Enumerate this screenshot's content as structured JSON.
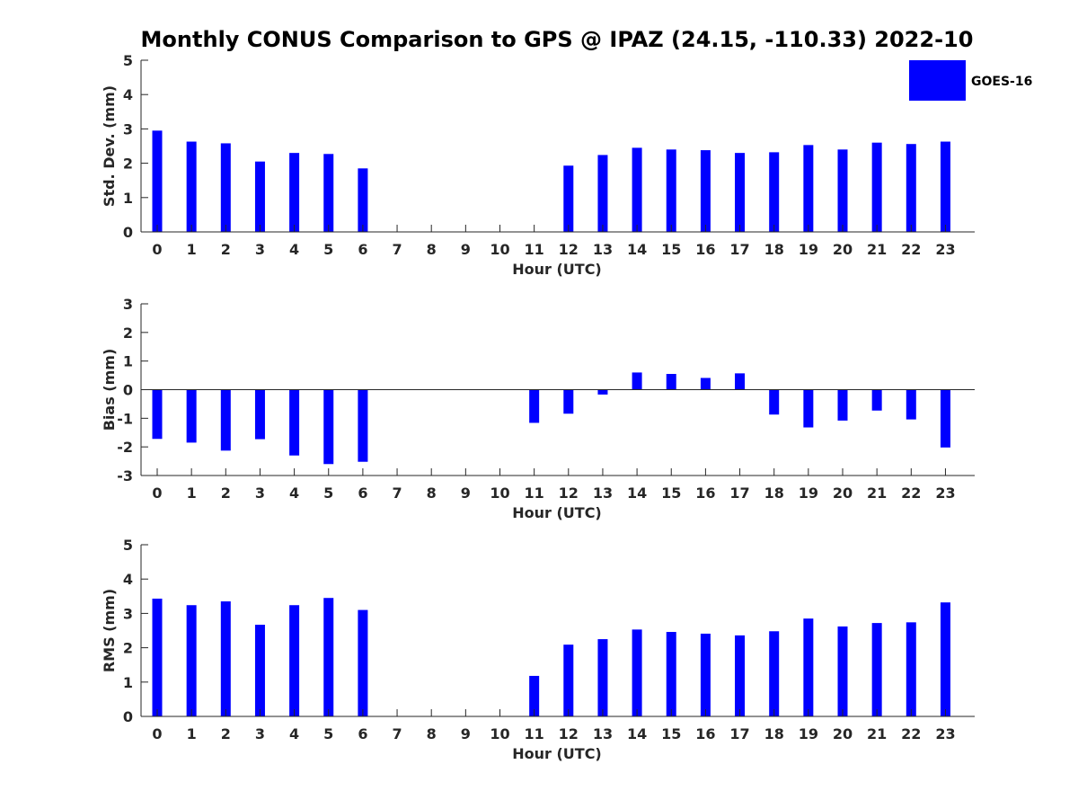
{
  "title": "Monthly CONUS Comparison to GPS @ IPAZ (24.15, -110.33) 2022-10",
  "colors": {
    "bar": "#0000ff",
    "axis": "#262626"
  },
  "chart_data": [
    {
      "type": "bar",
      "title": "Monthly CONUS Comparison to GPS @ IPAZ (24.15, -110.33) 2022-10",
      "xlabel": "Hour (UTC)",
      "ylabel": "Std. Dev. (mm)",
      "ylim": [
        0,
        5
      ],
      "yticks": [
        0,
        1,
        2,
        3,
        4,
        5
      ],
      "legend": {
        "label": "GOES-16",
        "placement": "top-right"
      },
      "categories": [
        "0",
        "1",
        "2",
        "3",
        "4",
        "5",
        "6",
        "7",
        "8",
        "9",
        "10",
        "11",
        "12",
        "13",
        "14",
        "15",
        "16",
        "17",
        "18",
        "19",
        "20",
        "21",
        "22",
        "23"
      ],
      "series": [
        {
          "name": "GOES-16",
          "values": [
            2.95,
            2.63,
            2.58,
            2.05,
            2.3,
            2.27,
            1.85,
            null,
            null,
            null,
            null,
            null,
            1.93,
            2.24,
            2.45,
            2.4,
            2.38,
            2.3,
            2.32,
            2.53,
            2.4,
            2.6,
            2.56,
            2.63
          ]
        }
      ]
    },
    {
      "type": "bar",
      "xlabel": "Hour (UTC)",
      "ylabel": "Bias (mm)",
      "ylim": [
        -3,
        3
      ],
      "yticks": [
        -3,
        -2,
        -1,
        0,
        1,
        2,
        3
      ],
      "categories": [
        "0",
        "1",
        "2",
        "3",
        "4",
        "5",
        "6",
        "7",
        "8",
        "9",
        "10",
        "11",
        "12",
        "13",
        "14",
        "15",
        "16",
        "17",
        "18",
        "19",
        "20",
        "21",
        "22",
        "23"
      ],
      "series": [
        {
          "name": "GOES-16",
          "values": [
            -1.72,
            -1.85,
            -2.13,
            -1.73,
            -2.3,
            -2.6,
            -2.52,
            null,
            null,
            null,
            null,
            -1.16,
            -0.84,
            -0.17,
            0.6,
            0.55,
            0.41,
            0.57,
            -0.87,
            -1.32,
            -1.08,
            -0.73,
            -1.04,
            -2.02
          ]
        }
      ]
    },
    {
      "type": "bar",
      "xlabel": "Hour (UTC)",
      "ylabel": "RMS (mm)",
      "ylim": [
        0,
        5
      ],
      "yticks": [
        0,
        1,
        2,
        3,
        4,
        5
      ],
      "categories": [
        "0",
        "1",
        "2",
        "3",
        "4",
        "5",
        "6",
        "7",
        "8",
        "9",
        "10",
        "11",
        "12",
        "13",
        "14",
        "15",
        "16",
        "17",
        "18",
        "19",
        "20",
        "21",
        "22",
        "23"
      ],
      "series": [
        {
          "name": "GOES-16",
          "values": [
            3.43,
            3.24,
            3.35,
            2.67,
            3.24,
            3.45,
            3.1,
            null,
            null,
            null,
            null,
            1.18,
            2.09,
            2.25,
            2.53,
            2.46,
            2.41,
            2.36,
            2.48,
            2.85,
            2.62,
            2.72,
            2.74,
            3.32
          ]
        }
      ]
    }
  ]
}
